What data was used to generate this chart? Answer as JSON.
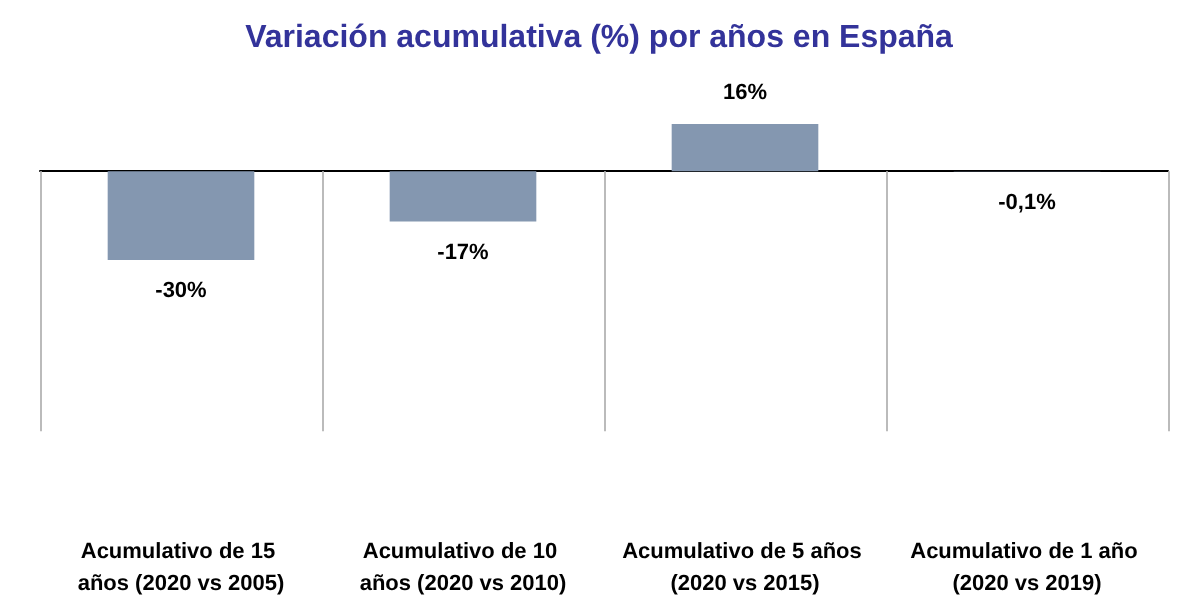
{
  "chart_data": {
    "type": "bar",
    "title": "Variación acumulativa (%) por años en España",
    "categories": [
      "Acumulativo de 15 años (2020 vs 2005)",
      "Acumulativo de 10 años (2020 vs 2010)",
      "Acumulativo de 5 años (2020 vs 2015)",
      "Acumulativo de 1 año (2020 vs 2019)"
    ],
    "values": [
      -30,
      -17,
      16,
      -0.1
    ],
    "value_labels": [
      "-30%",
      "-17%",
      "16%",
      "-0,1%"
    ],
    "color": "#8497b0"
  }
}
